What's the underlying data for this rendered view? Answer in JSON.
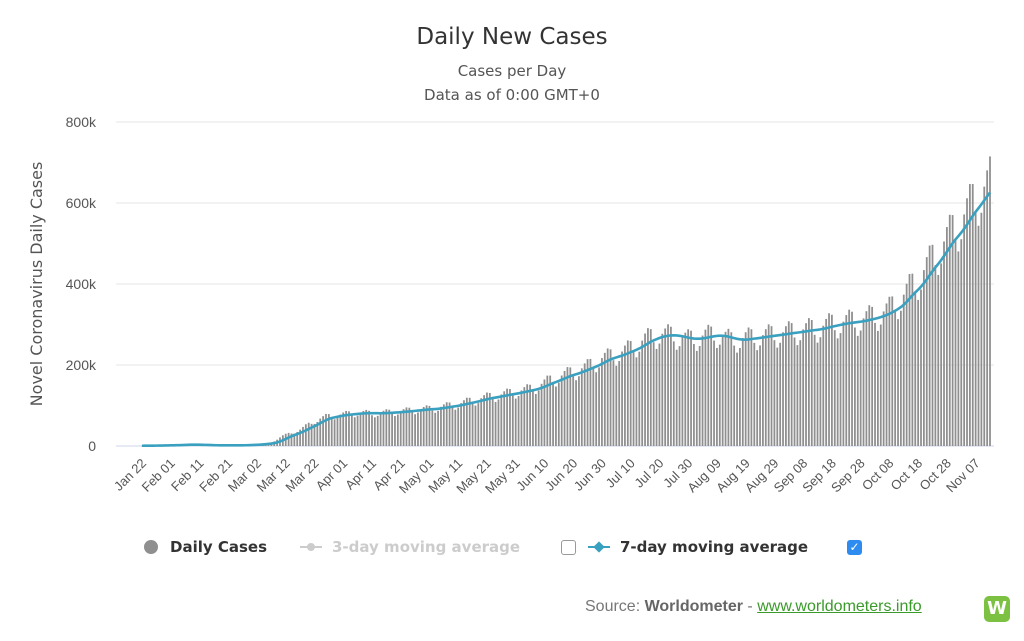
{
  "chart_data": {
    "type": "bar",
    "title": "Daily New Cases",
    "subtitle": [
      "Cases per Day",
      "Data as of 0:00 GMT+0"
    ],
    "ylabel": "Novel Coronavirus Daily Cases",
    "xlabel": "",
    "ylim": [
      0,
      800000
    ],
    "y_ticks": [
      0,
      200000,
      400000,
      600000,
      800000
    ],
    "y_tick_labels": [
      "0",
      "200k",
      "400k",
      "600k",
      "800k"
    ],
    "x_tick_labels": [
      "Jan 22",
      "Feb 01",
      "Feb 11",
      "Feb 21",
      "Mar 02",
      "Mar 12",
      "Mar 22",
      "Apr 01",
      "Apr 11",
      "Apr 21",
      "May 01",
      "May 11",
      "May 21",
      "May 31",
      "Jun 10",
      "Jun 20",
      "Jun 30",
      "Jul 10",
      "Jul 20",
      "Jul 30",
      "Aug 09",
      "Aug 19",
      "Aug 29",
      "Sep 08",
      "Sep 18",
      "Sep 28",
      "Oct 08",
      "Oct 18",
      "Oct 28",
      "Nov 07"
    ],
    "grid": true,
    "legend_position": "bottom",
    "x_start": "Jan 22",
    "x_step_days": 1,
    "daily_anchors": [
      [
        0,
        600
      ],
      [
        10,
        2000
      ],
      [
        17,
        4000
      ],
      [
        20,
        2000
      ],
      [
        29,
        1500
      ],
      [
        35,
        2000
      ],
      [
        40,
        4000
      ],
      [
        45,
        9000
      ],
      [
        49,
        25000
      ],
      [
        55,
        40000
      ],
      [
        60,
        62000
      ],
      [
        64,
        72000
      ],
      [
        70,
        78000
      ],
      [
        76,
        82000
      ],
      [
        80,
        80000
      ],
      [
        90,
        85000
      ],
      [
        96,
        90000
      ],
      [
        101,
        92000
      ],
      [
        105,
        97000
      ],
      [
        110,
        103000
      ],
      [
        115,
        112000
      ],
      [
        120,
        120000
      ],
      [
        125,
        126000
      ],
      [
        130,
        133000
      ],
      [
        135,
        140000
      ],
      [
        140,
        155000
      ],
      [
        145,
        170000
      ],
      [
        150,
        182000
      ],
      [
        155,
        195000
      ],
      [
        160,
        215000
      ],
      [
        165,
        225000
      ],
      [
        170,
        240000
      ],
      [
        175,
        262000
      ],
      [
        180,
        275000
      ],
      [
        185,
        272000
      ],
      [
        190,
        262000
      ],
      [
        195,
        270000
      ],
      [
        200,
        275000
      ],
      [
        205,
        260000
      ],
      [
        210,
        265000
      ],
      [
        215,
        270000
      ],
      [
        220,
        275000
      ],
      [
        225,
        280000
      ],
      [
        230,
        285000
      ],
      [
        235,
        290000
      ],
      [
        240,
        300000
      ],
      [
        245,
        305000
      ],
      [
        250,
        310000
      ],
      [
        255,
        320000
      ],
      [
        260,
        335000
      ],
      [
        265,
        370000
      ],
      [
        270,
        410000
      ],
      [
        275,
        460000
      ],
      [
        280,
        510000
      ],
      [
        285,
        555000
      ],
      [
        290,
        610000
      ],
      [
        295,
        650000
      ]
    ],
    "weekly_pattern": [
      1.06,
      1.1,
      1.08,
      0.95,
      0.88,
      0.92,
      1.01
    ],
    "series": [
      {
        "name": "Daily Cases",
        "type": "bar",
        "color": "#8f8f8f",
        "visible": true
      },
      {
        "name": "3-day moving average",
        "type": "line",
        "color": "#cccccc",
        "visible": false
      },
      {
        "name": "7-day moving average",
        "type": "line",
        "color": "#3aa0c0",
        "visible": true
      }
    ]
  },
  "legend": {
    "daily_cases": "Daily Cases",
    "avg3": "3-day moving average",
    "avg7": "7-day moving average"
  },
  "source": {
    "prefix": "Source: ",
    "name": "Worldometer",
    "sep": " - ",
    "link": "www.worldometers.info",
    "logo_letter": "W"
  }
}
